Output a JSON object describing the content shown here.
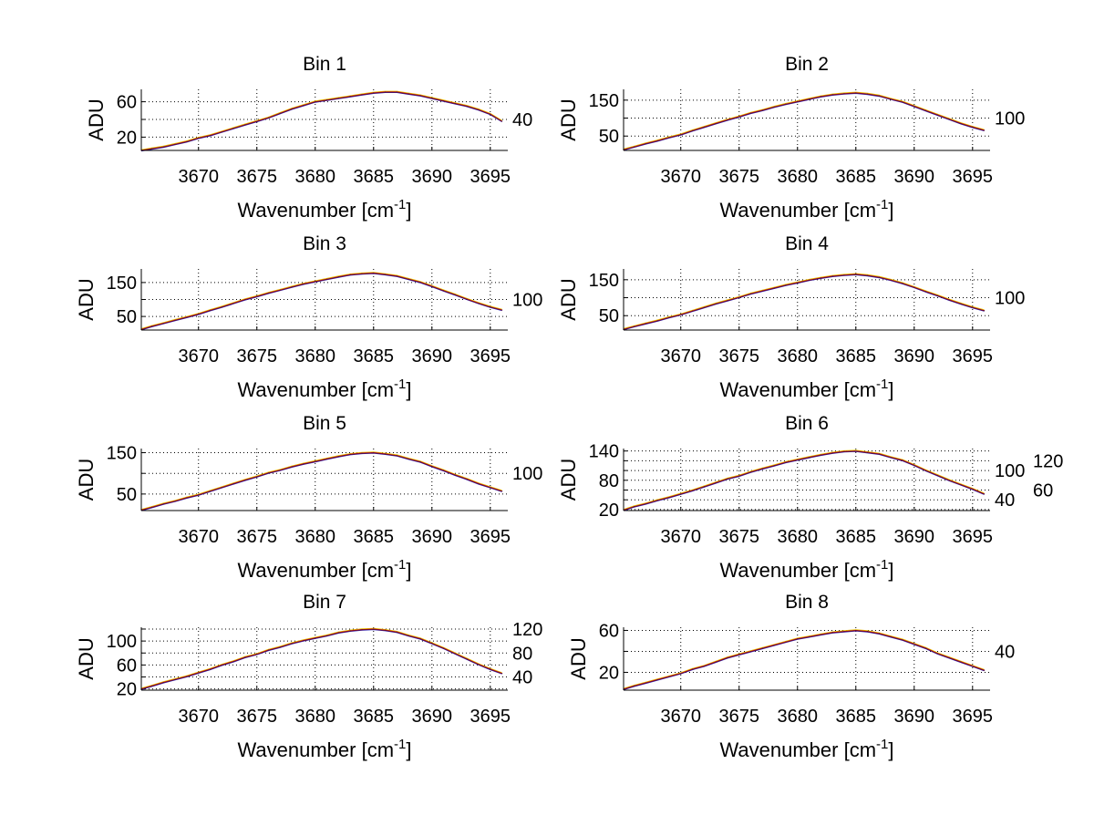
{
  "chart_data": [
    {
      "type": "line",
      "title": "Bin 1",
      "xlabel": "Wavenumber [cm",
      "xlabel_sup": "-1",
      "xlabel_end": "]",
      "ylabel": "ADU",
      "xlim": [
        3665.1,
        3696.5
      ],
      "ylim": [
        5,
        74
      ],
      "xticks": [
        3670,
        3675,
        3680,
        3685,
        3690,
        3695
      ],
      "yticks": [
        20,
        40,
        60
      ],
      "grid": true,
      "x_start": 3665,
      "x_step": 1,
      "values": [
        5,
        7,
        9,
        12,
        15,
        19,
        22,
        26,
        30,
        34,
        38,
        42,
        47,
        52,
        56,
        60,
        62,
        64,
        66,
        68,
        70,
        71,
        71,
        69,
        67,
        64,
        61,
        58,
        55,
        51,
        46,
        38
      ]
    },
    {
      "type": "line",
      "title": "Bin 2",
      "xlabel": "Wavenumber [cm",
      "xlabel_sup": "-1",
      "xlabel_end": "]",
      "ylabel": "ADU",
      "xlim": [
        3665.1,
        3696.5
      ],
      "ylim": [
        10,
        180
      ],
      "xticks": [
        3670,
        3675,
        3680,
        3685,
        3690,
        3695
      ],
      "yticks": [
        50,
        100,
        150
      ],
      "grid": true,
      "x_start": 3665,
      "x_step": 1,
      "values": [
        12,
        20,
        29,
        37,
        46,
        54,
        65,
        75,
        85,
        95,
        104,
        114,
        122,
        131,
        139,
        146,
        153,
        160,
        165,
        168,
        170,
        167,
        162,
        153,
        145,
        133,
        121,
        109,
        97,
        85,
        75,
        66
      ]
    },
    {
      "type": "line",
      "title": "Bin 3",
      "xlabel": "Wavenumber [cm",
      "xlabel_sup": "-1",
      "xlabel_end": "]",
      "ylabel": "ADU",
      "xlim": [
        3665.1,
        3696.5
      ],
      "ylim": [
        10,
        190
      ],
      "xticks": [
        3670,
        3675,
        3680,
        3685,
        3690,
        3695
      ],
      "yticks": [
        50,
        100,
        150
      ],
      "grid": true,
      "x_start": 3665,
      "x_step": 1,
      "values": [
        12,
        21,
        30,
        39,
        48,
        57,
        68,
        78,
        89,
        100,
        109,
        119,
        128,
        137,
        146,
        153,
        160,
        167,
        173,
        176,
        178,
        174,
        169,
        160,
        151,
        139,
        126,
        114,
        101,
        89,
        78,
        69
      ]
    },
    {
      "type": "line",
      "title": "Bin 4",
      "xlabel": "Wavenumber [cm",
      "xlabel_sup": "-1",
      "xlabel_end": "]",
      "ylabel": "ADU",
      "xlim": [
        3665.1,
        3696.5
      ],
      "ylim": [
        10,
        180
      ],
      "xticks": [
        3670,
        3675,
        3680,
        3685,
        3690,
        3695
      ],
      "yticks": [
        50,
        100,
        150
      ],
      "grid": true,
      "x_start": 3665,
      "x_step": 1,
      "values": [
        12,
        20,
        28,
        36,
        45,
        53,
        63,
        73,
        83,
        92,
        101,
        111,
        119,
        127,
        135,
        142,
        149,
        155,
        160,
        163,
        165,
        162,
        157,
        149,
        140,
        129,
        117,
        106,
        94,
        83,
        73,
        64
      ]
    },
    {
      "type": "line",
      "title": "Bin 5",
      "xlabel": "Wavenumber [cm",
      "xlabel_sup": "-1",
      "xlabel_end": "]",
      "ylabel": "ADU",
      "xlim": [
        3665.1,
        3696.5
      ],
      "ylim": [
        10,
        160
      ],
      "xticks": [
        3670,
        3675,
        3680,
        3685,
        3690,
        3695
      ],
      "yticks": [
        50,
        100,
        150
      ],
      "grid": true,
      "x_start": 3665,
      "x_step": 1,
      "values": [
        11,
        18,
        26,
        33,
        41,
        48,
        57,
        66,
        75,
        84,
        92,
        101,
        108,
        116,
        123,
        129,
        135,
        141,
        146,
        149,
        150,
        147,
        143,
        135,
        128,
        117,
        107,
        96,
        86,
        75,
        66,
        57
      ]
    },
    {
      "type": "line",
      "title": "Bin 6",
      "xlabel": "Wavenumber [cm",
      "xlabel_sup": "-1",
      "xlabel_end": "]",
      "ylabel": "ADU",
      "xlim": [
        3665.1,
        3696.5
      ],
      "ylim": [
        18,
        145
      ],
      "xticks": [
        3670,
        3675,
        3680,
        3685,
        3690,
        3695
      ],
      "yticks": [
        20,
        40,
        60,
        80,
        100,
        120,
        140
      ],
      "grid": true,
      "x_start": 3665,
      "x_step": 1,
      "values": [
        19,
        26,
        32,
        39,
        45,
        52,
        59,
        67,
        75,
        83,
        89,
        97,
        104,
        110,
        117,
        122,
        127,
        132,
        136,
        139,
        140,
        137,
        134,
        127,
        121,
        111,
        100,
        90,
        80,
        71,
        62,
        52
      ]
    },
    {
      "type": "line",
      "title": "Bin 7",
      "xlabel": "Wavenumber [cm",
      "xlabel_sup": "-1",
      "xlabel_end": "]",
      "ylabel": "ADU",
      "xlim": [
        3665.1,
        3696.5
      ],
      "ylim": [
        18,
        123
      ],
      "xticks": [
        3670,
        3675,
        3680,
        3685,
        3690,
        3695
      ],
      "yticks": [
        20,
        40,
        60,
        80,
        100,
        120
      ],
      "grid": true,
      "x_start": 3665,
      "x_step": 1,
      "values": [
        20,
        25,
        31,
        36,
        41,
        47,
        53,
        60,
        66,
        73,
        78,
        85,
        90,
        96,
        101,
        105,
        109,
        114,
        117,
        119,
        120,
        118,
        115,
        109,
        104,
        96,
        88,
        79,
        70,
        61,
        53,
        46
      ]
    },
    {
      "type": "line",
      "title": "Bin 8",
      "xlabel": "Wavenumber [cm",
      "xlabel_sup": "-1",
      "xlabel_end": "]",
      "ylabel": "ADU",
      "xlim": [
        3665.1,
        3696.5
      ],
      "ylim": [
        3,
        63
      ],
      "xticks": [
        3670,
        3675,
        3680,
        3685,
        3690,
        3695
      ],
      "yticks": [
        20,
        40,
        60
      ],
      "grid": true,
      "x_start": 3665,
      "x_step": 1,
      "values": [
        4,
        7,
        10,
        13,
        16,
        19,
        23,
        26,
        30,
        34,
        37,
        40,
        43,
        46,
        49,
        52,
        54,
        56,
        58,
        59,
        60,
        59,
        57,
        54,
        51,
        47,
        43,
        38,
        34,
        30,
        26,
        22
      ]
    }
  ],
  "colors": {
    "line": "#5a0a3a",
    "overlay_red": "#e00000",
    "overlay_yellow": "#e8c000",
    "overlay_blue": "#2020c0"
  }
}
